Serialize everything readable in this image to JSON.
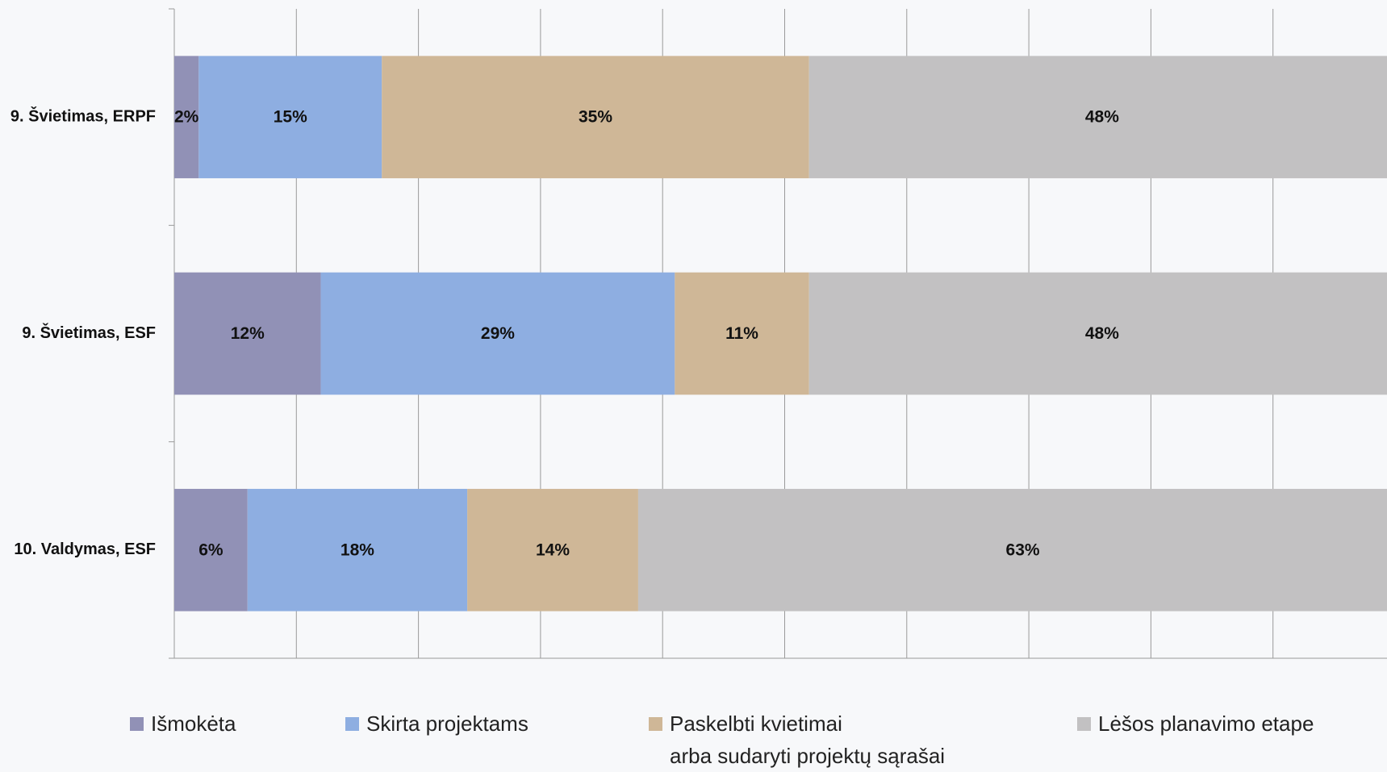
{
  "chart_data": {
    "type": "stacked-bar-horizontal",
    "categories": [
      "9. Švietimas, ERPF",
      "9. Švietimas, ESF",
      "10. Valdymas, ESF"
    ],
    "series": [
      {
        "name": "Išmokėta",
        "color": "#9191b6",
        "values": [
          2,
          12,
          6
        ],
        "value_labels": [
          "2%",
          "12%",
          "6%"
        ]
      },
      {
        "name": "Skirta projektams",
        "color": "#8eaee1",
        "values": [
          15,
          29,
          18
        ],
        "value_labels": [
          "15%",
          "29%",
          "18%"
        ]
      },
      {
        "name": "Paskelbti kvietimai\narba sudaryti projektų sąrašai",
        "color": "#cfb797",
        "values": [
          35,
          11,
          14
        ],
        "value_labels": [
          "35%",
          "11%",
          "14%"
        ]
      },
      {
        "name": "Lėšos planavimo etape",
        "color": "#c2c1c2",
        "values": [
          48,
          48,
          63
        ],
        "value_labels": [
          "48%",
          "48%",
          "63%"
        ]
      }
    ],
    "xlim": [
      0,
      100
    ],
    "xticks": [
      0,
      10,
      20,
      30,
      40,
      50,
      60,
      70,
      80,
      90,
      100
    ],
    "grid": true,
    "legend": "bottom"
  }
}
